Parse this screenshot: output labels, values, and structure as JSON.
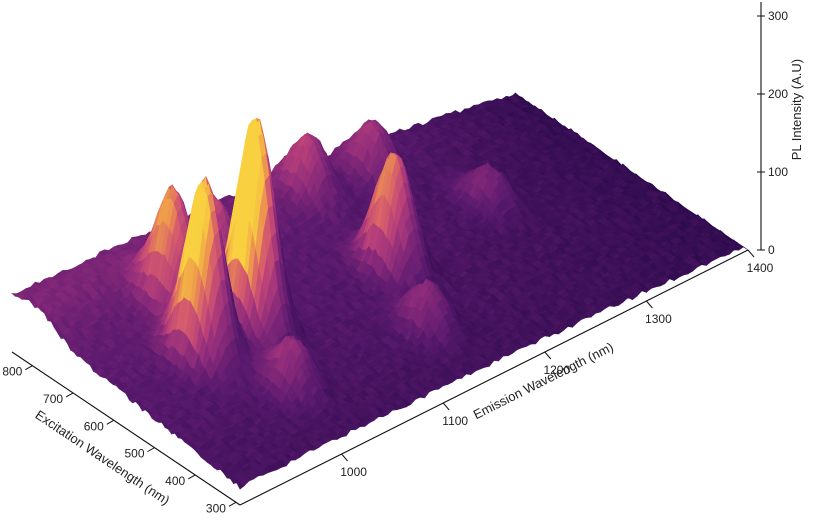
{
  "chart_data": {
    "type": "surface",
    "x_axis": {
      "label": "Emission Wavelength (nm)",
      "range": [
        900,
        1400
      ],
      "ticks": [
        1000,
        1100,
        1200,
        1300,
        1400
      ]
    },
    "y_axis": {
      "label": "Excitation Wavelength (nm)",
      "range": [
        290,
        850
      ],
      "ticks": [
        300,
        400,
        500,
        600,
        700,
        800
      ]
    },
    "z_axis": {
      "label": "PL Intensity (A.U)",
      "range": [
        0,
        300
      ],
      "ticks": [
        0,
        100,
        200,
        300
      ]
    },
    "colormap": [
      "#2a0a4a",
      "#5a1a6e",
      "#8a2a7a",
      "#b8407a",
      "#d8606a",
      "#f0a04a",
      "#f8d040"
    ],
    "peaks": [
      {
        "emission": 980,
        "excitation": 575,
        "intensity": 225
      },
      {
        "emission": 1030,
        "excitation": 575,
        "intensity": 275
      },
      {
        "emission": 1000,
        "excitation": 700,
        "intensity": 145
      },
      {
        "emission": 1165,
        "excitation": 570,
        "intensity": 148
      },
      {
        "emission": 1050,
        "excitation": 720,
        "intensity": 90
      },
      {
        "emission": 1170,
        "excitation": 790,
        "intensity": 70
      },
      {
        "emission": 1010,
        "excitation": 430,
        "intensity": 60
      },
      {
        "emission": 1140,
        "excitation": 420,
        "intensity": 55
      },
      {
        "emission": 1280,
        "excitation": 620,
        "intensity": 45
      },
      {
        "emission": 1230,
        "excitation": 780,
        "intensity": 60
      }
    ],
    "baseline": {
      "min": 6,
      "max": 75
    }
  }
}
